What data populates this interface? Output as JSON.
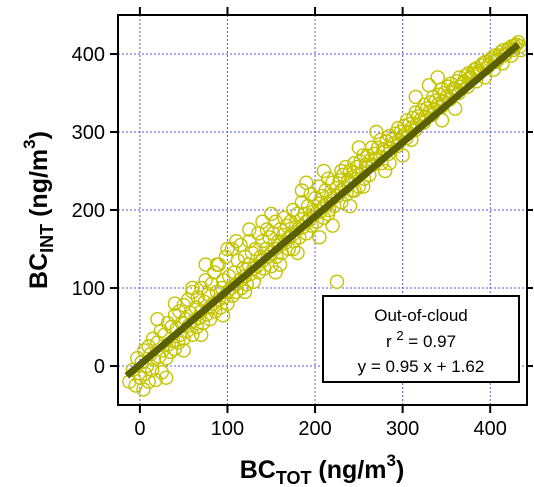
{
  "chart_data": {
    "type": "scatter",
    "x_axis": {
      "label_main": "BC",
      "label_sub": "TOT",
      "label_unit": " (ng/m",
      "label_sup": "3",
      "label_close": ")",
      "range": [
        -25,
        442
      ],
      "ticks": [
        0,
        100,
        200,
        300,
        400
      ],
      "tick_labels": [
        "0",
        "100",
        "200",
        "300",
        "400"
      ]
    },
    "y_axis": {
      "label_main": "BC",
      "label_sub": "INT",
      "label_unit": " (ng/m",
      "label_sup": "3",
      "label_close": ")",
      "range": [
        -50,
        450
      ],
      "ticks": [
        0,
        100,
        200,
        300,
        400
      ],
      "tick_labels": [
        "0",
        "100",
        "200",
        "300",
        "400"
      ]
    },
    "grid": true,
    "grid_color": "#5a5ad6",
    "marker_color": "#c4c400",
    "fit_line_color": "#5a5f00",
    "fit": {
      "slope": 0.95,
      "intercept": 1.62,
      "x_range": [
        -15,
        432
      ]
    },
    "legend_placement": "bottom-right",
    "annotation": {
      "line1": "Out-of-cloud",
      "line2_prefix": "r ",
      "line2_sup": "2",
      "line2_rest": " = 0.97",
      "line3": "y = 0.95 x + 1.62"
    },
    "points": [
      [
        -12,
        -20
      ],
      [
        -8,
        -5
      ],
      [
        -5,
        -25
      ],
      [
        -3,
        10
      ],
      [
        0,
        -15
      ],
      [
        2,
        5
      ],
      [
        4,
        -30
      ],
      [
        5,
        20
      ],
      [
        6,
        -10
      ],
      [
        8,
        0
      ],
      [
        10,
        25
      ],
      [
        10,
        -20
      ],
      [
        12,
        15
      ],
      [
        14,
        -5
      ],
      [
        15,
        35
      ],
      [
        16,
        8
      ],
      [
        18,
        -18
      ],
      [
        20,
        30
      ],
      [
        22,
        12
      ],
      [
        24,
        45
      ],
      [
        25,
        -8
      ],
      [
        26,
        20
      ],
      [
        28,
        40
      ],
      [
        30,
        10
      ],
      [
        32,
        55
      ],
      [
        33,
        28
      ],
      [
        35,
        18
      ],
      [
        36,
        50
      ],
      [
        38,
        32
      ],
      [
        40,
        65
      ],
      [
        40,
        22
      ],
      [
        42,
        48
      ],
      [
        44,
        30
      ],
      [
        45,
        70
      ],
      [
        46,
        40
      ],
      [
        48,
        55
      ],
      [
        50,
        35
      ],
      [
        50,
        78
      ],
      [
        52,
        60
      ],
      [
        54,
        45
      ],
      [
        55,
        85
      ],
      [
        56,
        52
      ],
      [
        58,
        68
      ],
      [
        60,
        40
      ],
      [
        60,
        95
      ],
      [
        62,
        58
      ],
      [
        64,
        75
      ],
      [
        65,
        50
      ],
      [
        66,
        88
      ],
      [
        68,
        62
      ],
      [
        70,
        70
      ],
      [
        70,
        100
      ],
      [
        72,
        55
      ],
      [
        74,
        82
      ],
      [
        75,
        110
      ],
      [
        76,
        66
      ],
      [
        78,
        92
      ],
      [
        80,
        75
      ],
      [
        80,
        60
      ],
      [
        82,
        105
      ],
      [
        84,
        80
      ],
      [
        85,
        120
      ],
      [
        86,
        70
      ],
      [
        88,
        95
      ],
      [
        90,
        85
      ],
      [
        90,
        130
      ],
      [
        92,
        75
      ],
      [
        94,
        100
      ],
      [
        95,
        110
      ],
      [
        96,
        88
      ],
      [
        98,
        140
      ],
      [
        100,
        95
      ],
      [
        100,
        80
      ],
      [
        102,
        115
      ],
      [
        104,
        100
      ],
      [
        105,
        150
      ],
      [
        106,
        90
      ],
      [
        108,
        120
      ],
      [
        110,
        105
      ],
      [
        110,
        95
      ],
      [
        112,
        135
      ],
      [
        114,
        110
      ],
      [
        115,
        155
      ],
      [
        116,
        100
      ],
      [
        118,
        125
      ],
      [
        120,
        115
      ],
      [
        120,
        140
      ],
      [
        122,
        105
      ],
      [
        124,
        130
      ],
      [
        125,
        160
      ],
      [
        126,
        118
      ],
      [
        128,
        145
      ],
      [
        130,
        125
      ],
      [
        130,
        108
      ],
      [
        132,
        150
      ],
      [
        134,
        128
      ],
      [
        135,
        170
      ],
      [
        136,
        120
      ],
      [
        138,
        140
      ],
      [
        140,
        135
      ],
      [
        140,
        160
      ],
      [
        142,
        125
      ],
      [
        144,
        150
      ],
      [
        145,
        175
      ],
      [
        146,
        140
      ],
      [
        148,
        165
      ],
      [
        150,
        145
      ],
      [
        150,
        128
      ],
      [
        152,
        170
      ],
      [
        154,
        150
      ],
      [
        155,
        185
      ],
      [
        156,
        140
      ],
      [
        158,
        160
      ],
      [
        160,
        155
      ],
      [
        160,
        175
      ],
      [
        162,
        145
      ],
      [
        164,
        168
      ],
      [
        165,
        190
      ],
      [
        166,
        158
      ],
      [
        168,
        180
      ],
      [
        170,
        165
      ],
      [
        170,
        150
      ],
      [
        172,
        185
      ],
      [
        174,
        168
      ],
      [
        175,
        200
      ],
      [
        176,
        160
      ],
      [
        178,
        178
      ],
      [
        180,
        175
      ],
      [
        180,
        195
      ],
      [
        182,
        165
      ],
      [
        184,
        188
      ],
      [
        185,
        210
      ],
      [
        186,
        178
      ],
      [
        188,
        195
      ],
      [
        190,
        185
      ],
      [
        190,
        170
      ],
      [
        192,
        205
      ],
      [
        194,
        188
      ],
      [
        195,
        220
      ],
      [
        196,
        180
      ],
      [
        198,
        198
      ],
      [
        200,
        195
      ],
      [
        200,
        215
      ],
      [
        202,
        185
      ],
      [
        204,
        208
      ],
      [
        205,
        230
      ],
      [
        206,
        198
      ],
      [
        208,
        218
      ],
      [
        210,
        205
      ],
      [
        210,
        190
      ],
      [
        212,
        225
      ],
      [
        214,
        208
      ],
      [
        215,
        240
      ],
      [
        216,
        200
      ],
      [
        218,
        218
      ],
      [
        220,
        215
      ],
      [
        220,
        235
      ],
      [
        222,
        205
      ],
      [
        224,
        228
      ],
      [
        225,
        108
      ],
      [
        226,
        218
      ],
      [
        228,
        238
      ],
      [
        230,
        225
      ],
      [
        230,
        210
      ],
      [
        232,
        245
      ],
      [
        234,
        228
      ],
      [
        235,
        255
      ],
      [
        236,
        220
      ],
      [
        238,
        238
      ],
      [
        240,
        235
      ],
      [
        240,
        250
      ],
      [
        242,
        225
      ],
      [
        244,
        248
      ],
      [
        245,
        260
      ],
      [
        246,
        240
      ],
      [
        248,
        255
      ],
      [
        250,
        245
      ],
      [
        250,
        230
      ],
      [
        252,
        262
      ],
      [
        254,
        248
      ],
      [
        255,
        270
      ],
      [
        256,
        240
      ],
      [
        258,
        258
      ],
      [
        260,
        255
      ],
      [
        260,
        270
      ],
      [
        262,
        245
      ],
      [
        264,
        265
      ],
      [
        265,
        280
      ],
      [
        266,
        258
      ],
      [
        268,
        272
      ],
      [
        270,
        265
      ],
      [
        272,
        280
      ],
      [
        274,
        268
      ],
      [
        275,
        290
      ],
      [
        276,
        260
      ],
      [
        278,
        278
      ],
      [
        280,
        275
      ],
      [
        282,
        288
      ],
      [
        284,
        272
      ],
      [
        285,
        295
      ],
      [
        286,
        280
      ],
      [
        288,
        290
      ],
      [
        290,
        285
      ],
      [
        292,
        298
      ],
      [
        294,
        282
      ],
      [
        295,
        305
      ],
      [
        296,
        290
      ],
      [
        298,
        300
      ],
      [
        300,
        295
      ],
      [
        302,
        308
      ],
      [
        304,
        292
      ],
      [
        305,
        315
      ],
      [
        306,
        300
      ],
      [
        308,
        310
      ],
      [
        310,
        305
      ],
      [
        312,
        318
      ],
      [
        314,
        302
      ],
      [
        315,
        325
      ],
      [
        316,
        310
      ],
      [
        318,
        320
      ],
      [
        320,
        315
      ],
      [
        322,
        328
      ],
      [
        324,
        312
      ],
      [
        325,
        335
      ],
      [
        326,
        320
      ],
      [
        328,
        330
      ],
      [
        330,
        325
      ],
      [
        332,
        338
      ],
      [
        334,
        322
      ],
      [
        335,
        345
      ],
      [
        336,
        330
      ],
      [
        338,
        340
      ],
      [
        340,
        335
      ],
      [
        342,
        348
      ],
      [
        344,
        332
      ],
      [
        345,
        355
      ],
      [
        346,
        340
      ],
      [
        348,
        350
      ],
      [
        350,
        345
      ],
      [
        352,
        358
      ],
      [
        354,
        342
      ],
      [
        355,
        362
      ],
      [
        356,
        350
      ],
      [
        358,
        355
      ],
      [
        360,
        355
      ],
      [
        362,
        365
      ],
      [
        364,
        350
      ],
      [
        365,
        370
      ],
      [
        366,
        358
      ],
      [
        368,
        362
      ],
      [
        370,
        365
      ],
      [
        372,
        372
      ],
      [
        374,
        358
      ],
      [
        375,
        375
      ],
      [
        376,
        368
      ],
      [
        378,
        370
      ],
      [
        380,
        375
      ],
      [
        382,
        380
      ],
      [
        384,
        365
      ],
      [
        385,
        382
      ],
      [
        386,
        375
      ],
      [
        388,
        378
      ],
      [
        390,
        385
      ],
      [
        392,
        388
      ],
      [
        394,
        370
      ],
      [
        395,
        390
      ],
      [
        396,
        382
      ],
      [
        398,
        385
      ],
      [
        400,
        392
      ],
      [
        402,
        395
      ],
      [
        404,
        380
      ],
      [
        405,
        398
      ],
      [
        406,
        390
      ],
      [
        408,
        392
      ],
      [
        410,
        398
      ],
      [
        412,
        402
      ],
      [
        414,
        388
      ],
      [
        415,
        405
      ],
      [
        416,
        398
      ],
      [
        418,
        400
      ],
      [
        420,
        405
      ],
      [
        422,
        408
      ],
      [
        424,
        398
      ],
      [
        425,
        410
      ],
      [
        426,
        405
      ],
      [
        428,
        410
      ],
      [
        430,
        412
      ],
      [
        432,
        415
      ],
      [
        434,
        410
      ],
      [
        435,
        405
      ],
      [
        88,
        130
      ],
      [
        120,
        95
      ],
      [
        150,
        195
      ],
      [
        180,
        145
      ],
      [
        210,
        250
      ],
      [
        240,
        205
      ],
      [
        270,
        300
      ],
      [
        300,
        270
      ],
      [
        330,
        360
      ],
      [
        360,
        330
      ],
      [
        60,
        100
      ],
      [
        100,
        150
      ],
      [
        140,
        185
      ],
      [
        175,
        150
      ],
      [
        205,
        165
      ],
      [
        230,
        250
      ],
      [
        255,
        230
      ],
      [
        285,
        260
      ],
      [
        315,
        345
      ],
      [
        345,
        315
      ],
      [
        40,
        80
      ],
      [
        70,
        40
      ],
      [
        110,
        160
      ],
      [
        160,
        130
      ],
      [
        190,
        235
      ],
      [
        220,
        180
      ],
      [
        250,
        280
      ],
      [
        280,
        250
      ],
      [
        310,
        290
      ],
      [
        340,
        370
      ],
      [
        20,
        60
      ],
      [
        30,
        -15
      ],
      [
        50,
        20
      ],
      [
        75,
        130
      ],
      [
        95,
        65
      ],
      [
        125,
        175
      ],
      [
        155,
        120
      ],
      [
        185,
        225
      ],
      [
        215,
        195
      ],
      [
        245,
        225
      ]
    ]
  }
}
